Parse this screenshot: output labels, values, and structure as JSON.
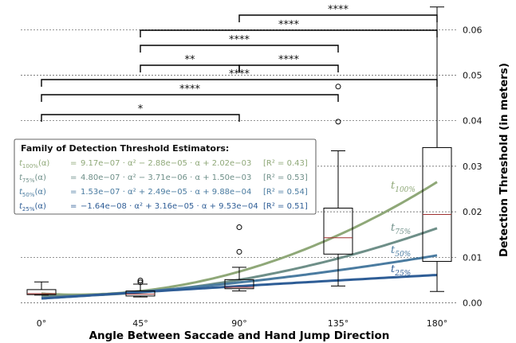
{
  "chart_data": {
    "type": "box",
    "xlabel": "Angle Between Saccade and Hand Jump Direction",
    "ylabel": "Detection Threshold (in meters)",
    "categories": [
      "0°",
      "45°",
      "90°",
      "135°",
      "180°"
    ],
    "x_values": [
      0,
      45,
      90,
      135,
      180
    ],
    "ylim": [
      -0.001,
      0.0655
    ],
    "yticks": [
      0.0,
      0.01,
      0.02,
      0.03,
      0.04,
      0.05,
      0.06
    ],
    "ytick_labels": [
      "0.00",
      "0.01",
      "0.02",
      "0.03",
      "0.04",
      "0.05",
      "0.06"
    ],
    "grid": "horizontal dashed",
    "boxes": [
      {
        "category": "0°",
        "whisker_low": 0.0017,
        "q1": 0.0018,
        "median": 0.002,
        "q3": 0.0029,
        "whisker_high": 0.0046,
        "outliers": []
      },
      {
        "category": "45°",
        "whisker_low": 0.0013,
        "q1": 0.0015,
        "median": 0.0019,
        "q3": 0.0026,
        "whisker_high": 0.0041,
        "outliers": [
          0.0045,
          0.0049
        ]
      },
      {
        "category": "90°",
        "whisker_low": 0.0026,
        "q1": 0.0031,
        "median": 0.0034,
        "q3": 0.0051,
        "whisker_high": 0.0078,
        "outliers": [
          0.0112,
          0.0166
        ]
      },
      {
        "category": "135°",
        "whisker_low": 0.0037,
        "q1": 0.0107,
        "median": 0.0143,
        "q3": 0.0208,
        "whisker_high": 0.0334,
        "outliers": [
          0.0398,
          0.0475
        ]
      },
      {
        "category": "180°",
        "whisker_low": 0.0025,
        "q1": 0.0091,
        "median": 0.0194,
        "q3": 0.0341,
        "whisker_high": 0.065,
        "outliers": []
      }
    ],
    "curves": [
      {
        "name": "t100%",
        "sub": "100%",
        "color": "#8fa878",
        "coeffs": [
          9.17e-07,
          -2.88e-05,
          0.00202
        ]
      },
      {
        "name": "t75%",
        "sub": "75%",
        "color": "#6e8f88",
        "coeffs": [
          4.8e-07,
          -3.71e-06,
          0.0015
        ]
      },
      {
        "name": "t50%",
        "sub": "50%",
        "color": "#4a7ba0",
        "coeffs": [
          1.53e-07,
          2.49e-05,
          0.000988
        ]
      },
      {
        "name": "t25%",
        "sub": "25%",
        "color": "#2e5d96",
        "coeffs": [
          -1.64e-08,
          3.16e-05,
          0.000953
        ]
      }
    ],
    "significance": [
      {
        "from": "90°",
        "to": "180°",
        "label": "****"
      },
      {
        "from": "45°",
        "to": "180°",
        "label": "****"
      },
      {
        "from": "45°",
        "to": "135°",
        "label": "****"
      },
      {
        "from": "45°",
        "to": "90°",
        "label": "**"
      },
      {
        "from": "90°",
        "to": "135°",
        "label": "****"
      },
      {
        "from": "0°",
        "to": "180°",
        "label": "****"
      },
      {
        "from": "0°",
        "to": "135°",
        "label": "****"
      },
      {
        "from": "0°",
        "to": "90°",
        "label": "*"
      }
    ],
    "legend": {
      "title": "Family of Detection Threshold Estimators:",
      "entries": [
        {
          "t": "t",
          "sub": "100%",
          "lhs_arg": "(α)",
          "eq": "=",
          "rhs": "9.17e−07 · α² − 2.88e−05 · α + 2.02e−03",
          "r2": "[R² = 0.43]",
          "color": "#8fa878"
        },
        {
          "t": "t",
          "sub": "75%",
          "lhs_arg": "(α)",
          "eq": "=",
          "rhs": "4.80e−07 · α² − 3.71e−06 · α + 1.50e−03",
          "r2": "[R² = 0.53]",
          "color": "#6e8f88"
        },
        {
          "t": "t",
          "sub": "50%",
          "lhs_arg": "(α)",
          "eq": "=",
          "rhs": "1.53e−07 · α² + 2.49e−05 · α + 9.88e−04",
          "r2": "[R² = 0.54]",
          "color": "#4a7ba0"
        },
        {
          "t": "t",
          "sub": "25%",
          "lhs_arg": "(α)",
          "eq": "=",
          "rhs": "−1.64e−08 · α² + 3.16e−05 · α + 9.53e−04",
          "r2": "[R² = 0.51]",
          "color": "#2e5d96"
        }
      ]
    }
  }
}
